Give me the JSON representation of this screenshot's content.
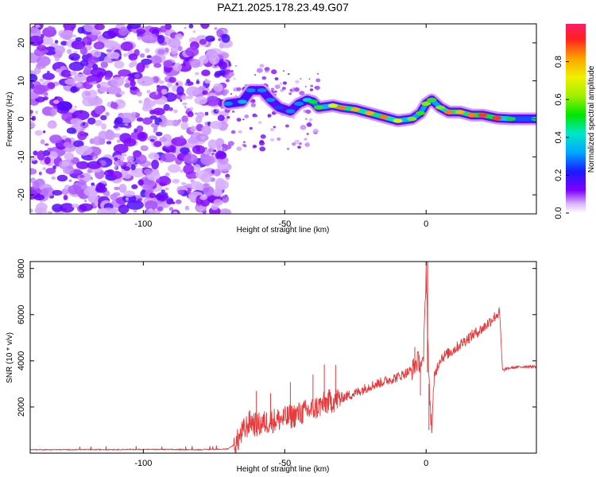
{
  "title": "PAZ1.2025.178.23.49.G07",
  "chart_data": [
    {
      "type": "heatmap",
      "xlabel": "Height of straight line (km)",
      "ylabel": "Frequency (Hz)",
      "xlim": [
        -140,
        39
      ],
      "ylim": [
        -25,
        25
      ],
      "xticks": [
        -100,
        -50,
        0
      ],
      "yticks": [
        -20,
        -10,
        0,
        10,
        20
      ],
      "colorbar": {
        "label": "Normalized spectral amplitude",
        "range": [
          0,
          1
        ],
        "ticks": [
          "0.0",
          "0.2",
          "0.4",
          "0.6",
          "0.8"
        ]
      },
      "noise_region": {
        "x_from": -140,
        "x_to": -70,
        "f_from": -25,
        "f_to": 25
      },
      "ridge": [
        {
          "x": -70,
          "f": 4,
          "a": 0.3
        },
        {
          "x": -65,
          "f": 4.5,
          "a": 0.35
        },
        {
          "x": -62,
          "f": 7.5,
          "a": 0.3
        },
        {
          "x": -58,
          "f": 7.5,
          "a": 0.3
        },
        {
          "x": -55,
          "f": 5,
          "a": 0.3
        },
        {
          "x": -52,
          "f": 3,
          "a": 0.25
        },
        {
          "x": -48,
          "f": 2,
          "a": 0.3
        },
        {
          "x": -45,
          "f": 4,
          "a": 0.3
        },
        {
          "x": -42,
          "f": 5,
          "a": 0.4
        },
        {
          "x": -40,
          "f": 4.5,
          "a": 0.5
        },
        {
          "x": -38,
          "f": 3,
          "a": 0.55
        },
        {
          "x": -33,
          "f": 3.5,
          "a": 0.7
        },
        {
          "x": -30,
          "f": 3,
          "a": 0.85
        },
        {
          "x": -25,
          "f": 2.5,
          "a": 0.8
        },
        {
          "x": -20,
          "f": 1.5,
          "a": 0.8
        },
        {
          "x": -15,
          "f": 0.5,
          "a": 0.85
        },
        {
          "x": -10,
          "f": -0.5,
          "a": 0.7
        },
        {
          "x": -5,
          "f": 0,
          "a": 0.6
        },
        {
          "x": -2,
          "f": 1.5,
          "a": 0.55
        },
        {
          "x": 0,
          "f": 4,
          "a": 0.6
        },
        {
          "x": 2,
          "f": 5,
          "a": 0.55
        },
        {
          "x": 5,
          "f": 3,
          "a": 0.6
        },
        {
          "x": 8,
          "f": 1.8,
          "a": 0.85
        },
        {
          "x": 12,
          "f": 1.8,
          "a": 0.8
        },
        {
          "x": 16,
          "f": 1,
          "a": 0.85
        },
        {
          "x": 20,
          "f": 1,
          "a": 0.9
        },
        {
          "x": 25,
          "f": 0.2,
          "a": 0.9
        },
        {
          "x": 30,
          "f": 0,
          "a": 0.5
        },
        {
          "x": 39,
          "f": 0,
          "a": 0.45
        }
      ]
    },
    {
      "type": "line",
      "xlabel": "Height of straight line (km)",
      "ylabel": "SNR (10 * v/v)",
      "xlim": [
        -140,
        39
      ],
      "ylim": [
        0,
        8300
      ],
      "xticks": [
        -100,
        -50,
        0
      ],
      "yticks": [
        2000,
        4000,
        6000,
        8000
      ],
      "color": "#e8393b",
      "series": [
        {
          "x": [
            -140,
            -120,
            -100,
            -80,
            -70,
            -67,
            -65,
            -62,
            -60,
            -55,
            -50,
            -45,
            -40,
            -35,
            -30,
            -25,
            -20,
            -15,
            -10,
            -5,
            -3,
            -1,
            0,
            1,
            2,
            3,
            5,
            10,
            15,
            20,
            25,
            26,
            27,
            30,
            35,
            39
          ],
          "y": [
            150,
            150,
            160,
            150,
            180,
            450,
            900,
            1400,
            1200,
            1400,
            1500,
            1700,
            1900,
            2200,
            2400,
            2600,
            2900,
            3100,
            3300,
            3600,
            4000,
            3800,
            8000,
            3000,
            1000,
            3400,
            4100,
            4500,
            5000,
            5400,
            6000,
            6100,
            3600,
            3700,
            3750,
            3750
          ]
        }
      ],
      "noise_spikes": [
        {
          "x": -60,
          "dy": 1500
        },
        {
          "x": -55,
          "dy": 1200
        },
        {
          "x": -48,
          "dy": 1500
        },
        {
          "x": -40,
          "dy": 1500
        },
        {
          "x": -36,
          "dy": 1700
        },
        {
          "x": -32,
          "dy": 1500
        },
        {
          "x": -4,
          "dy": 800
        },
        {
          "x": -2,
          "dy": -1400
        },
        {
          "x": 1,
          "dy": -2000
        }
      ]
    }
  ]
}
